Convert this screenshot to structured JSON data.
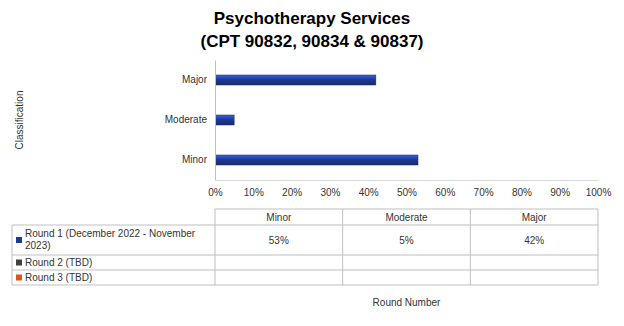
{
  "chart_data": {
    "type": "bar",
    "orientation": "horizontal",
    "title": "Psychotherapy Services",
    "subtitle": "(CPT 90832, 90834 & 90837)",
    "y_label": "Classification",
    "x_label": "Round Number",
    "categories": [
      "Minor",
      "Moderate",
      "Major"
    ],
    "series": [
      {
        "name": "Round 1 (December 2022 - November 2023)",
        "color": "#1f3a93",
        "values": [
          53,
          5,
          42
        ],
        "value_labels": [
          "53%",
          "5%",
          "42%"
        ]
      },
      {
        "name": "Round 2 (TBD)",
        "color": "#404040",
        "values": [
          null,
          null,
          null
        ]
      },
      {
        "name": "Round 3 (TBD)",
        "color": "#e0531f",
        "values": [
          null,
          null,
          null
        ]
      }
    ],
    "xlim": [
      0,
      100
    ],
    "xticks": [
      {
        "value": 0,
        "label": "0%"
      },
      {
        "value": 10,
        "label": "10%"
      },
      {
        "value": 20,
        "label": "20%"
      },
      {
        "value": 30,
        "label": "30%"
      },
      {
        "value": 40,
        "label": "40%"
      },
      {
        "value": 50,
        "label": "50%"
      },
      {
        "value": 60,
        "label": "60%"
      },
      {
        "value": 70,
        "label": "70%"
      },
      {
        "value": 80,
        "label": "80%"
      },
      {
        "value": 90,
        "label": "90%"
      },
      {
        "value": 100,
        "label": "100%"
      }
    ],
    "grid": false
  }
}
